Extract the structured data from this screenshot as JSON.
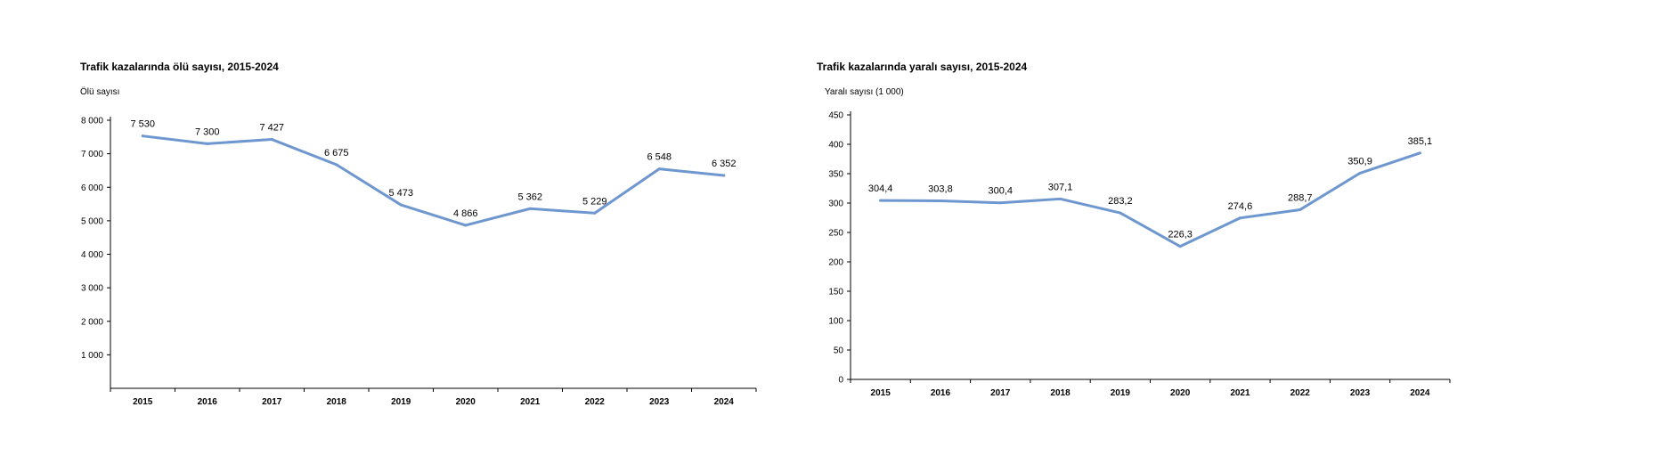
{
  "chart_data": [
    {
      "type": "line",
      "title": "Trafik kazalarında ölü sayısı, 2015-2024",
      "ylabel": "Ölü sayısı",
      "xlabel": "",
      "categories": [
        "2015",
        "2016",
        "2017",
        "2018",
        "2019",
        "2020",
        "2021",
        "2022",
        "2023",
        "2024"
      ],
      "values": [
        7530,
        7300,
        7427,
        6675,
        5473,
        4866,
        5362,
        5229,
        6548,
        6352
      ],
      "value_labels": [
        "7 530",
        "7 300",
        "7 427",
        "6 675",
        "5 473",
        "4 866",
        "5 362",
        "5 229",
        "6 548",
        "6 352"
      ],
      "ylim": [
        0,
        8000
      ],
      "yticks": [
        1000,
        2000,
        3000,
        4000,
        5000,
        6000,
        7000,
        8000
      ],
      "ytick_labels": [
        "1 000",
        "2 000",
        "3 000",
        "4 000",
        "5 000",
        "6 000",
        "7 000",
        "8 000"
      ],
      "grid": false,
      "line_color": "#6f97cf"
    },
    {
      "type": "line",
      "title": "Trafik kazalarında yaralı sayısı, 2015-2024",
      "ylabel": "Yaralı sayısı (1 000)",
      "xlabel": "",
      "categories": [
        "2015",
        "2016",
        "2017",
        "2018",
        "2019",
        "2020",
        "2021",
        "2022",
        "2023",
        "2024"
      ],
      "values": [
        304.4,
        303.8,
        300.4,
        307.1,
        283.2,
        226.3,
        274.6,
        288.7,
        350.9,
        385.1
      ],
      "value_labels": [
        "304,4",
        "303,8",
        "300,4",
        "307,1",
        "283,2",
        "226,3",
        "274,6",
        "288,7",
        "350,9",
        "385,1"
      ],
      "ylim": [
        0,
        450
      ],
      "yticks": [
        0,
        50,
        100,
        150,
        200,
        250,
        300,
        350,
        400,
        450
      ],
      "ytick_labels": [
        "0",
        "50",
        "100",
        "150",
        "200",
        "250",
        "300",
        "350",
        "400",
        "450"
      ],
      "grid": false,
      "line_color": "#6f97cf"
    }
  ]
}
